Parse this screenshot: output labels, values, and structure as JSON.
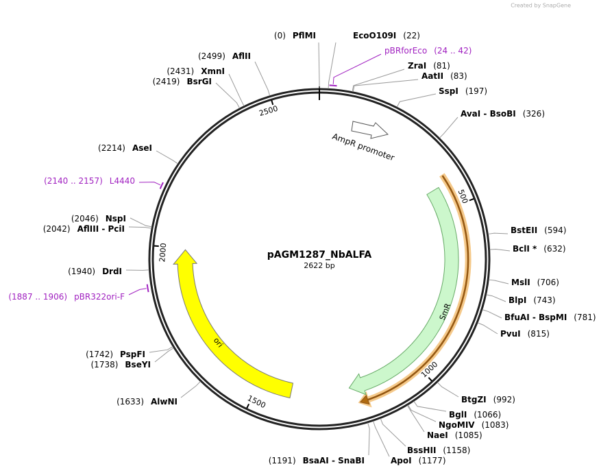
{
  "credit": "Created by SnapGene",
  "map": {
    "name": "pAGM1287_NbALFA",
    "size": "2622 bp",
    "ticks": [
      500,
      1000,
      1500,
      2000,
      2500
    ],
    "sites": [
      {
        "name": "PflMI",
        "position": "(0)"
      },
      {
        "name": "EcoO109I",
        "position": "(22)"
      },
      {
        "name": "ZraI",
        "position": "(81)"
      },
      {
        "name": "AatII",
        "position": "(83)"
      },
      {
        "name": "SspI",
        "position": "(197)"
      },
      {
        "name": "AvaI - BsoBI",
        "position": "(326)"
      },
      {
        "name": "BstEII",
        "position": "(594)"
      },
      {
        "name": "BclI *",
        "position": "(632)"
      },
      {
        "name": "MslI",
        "position": "(706)"
      },
      {
        "name": "BlpI",
        "position": "(743)"
      },
      {
        "name": "BfuAI - BspMI",
        "position": "(781)"
      },
      {
        "name": "PvuI",
        "position": "(815)"
      },
      {
        "name": "BtgZI",
        "position": "(992)"
      },
      {
        "name": "BglI",
        "position": "(1066)"
      },
      {
        "name": "NgoMIV",
        "position": "(1083)"
      },
      {
        "name": "NaeI",
        "position": "(1085)"
      },
      {
        "name": "BssHII",
        "position": "(1158)"
      },
      {
        "name": "ApoI",
        "position": "(1177)"
      },
      {
        "name": "BsaAI - SnaBI",
        "position": "(1191)"
      },
      {
        "name": "AlwNI",
        "position": "(1633)"
      },
      {
        "name": "BseYI",
        "position": "(1738)"
      },
      {
        "name": "PspFI",
        "position": "(1742)"
      },
      {
        "name": "DrdI",
        "position": "(1940)"
      },
      {
        "name": "AflIII - PciI",
        "position": "(2042)"
      },
      {
        "name": "NspI",
        "position": "(2046)"
      },
      {
        "name": "AseI",
        "position": "(2214)"
      },
      {
        "name": "BsrGI",
        "position": "(2419)"
      },
      {
        "name": "XmnI",
        "position": "(2431)"
      },
      {
        "name": "AflII",
        "position": "(2499)"
      }
    ],
    "primers": [
      {
        "name": "pBRforEco",
        "range": "(24 .. 42)"
      },
      {
        "name": "L4440",
        "range": "(2140 .. 2157)"
      },
      {
        "name": "pBR322ori-F",
        "range": "(1887 .. 1906)"
      }
    ],
    "features": [
      {
        "name": "AmpR promoter"
      },
      {
        "name": "SmR"
      },
      {
        "name": "ori"
      }
    ]
  }
}
